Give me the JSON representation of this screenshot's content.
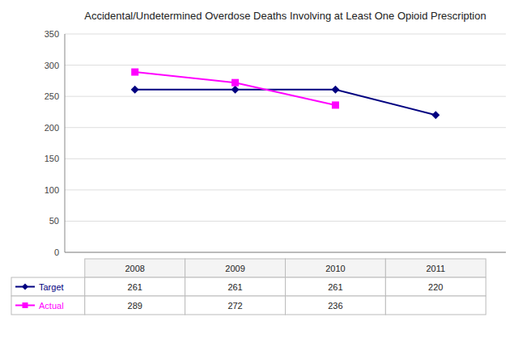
{
  "chart_data": {
    "type": "line",
    "title": "Accidental/Undetermined Overdose Deaths Involving at Least One Opioid Prescription",
    "x": [
      2008,
      2009,
      2010,
      2011
    ],
    "xlim": [
      2007.3,
      2011.7
    ],
    "series": [
      {
        "name": "Target",
        "color": "#000080",
        "marker": "diamond",
        "values": [
          261,
          261,
          261,
          220
        ]
      },
      {
        "name": "Actual",
        "color": "#FF00FF",
        "marker": "square",
        "values": [
          289,
          272,
          236,
          null
        ]
      }
    ],
    "ylim": [
      0,
      350
    ],
    "yticks": [
      0,
      50,
      100,
      150,
      200,
      250,
      300,
      350
    ],
    "grid": true,
    "tick_labels": "y"
  }
}
